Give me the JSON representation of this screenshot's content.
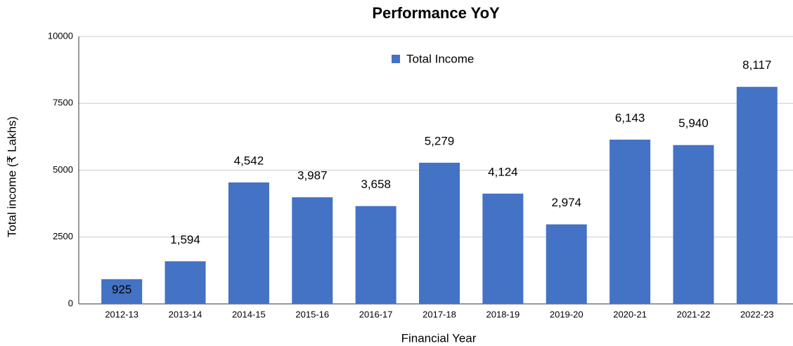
{
  "chart_data": {
    "type": "bar",
    "title": "Performance YoY",
    "x_label": "Financial Year",
    "y_label": "Total income (₹ Lakhs)",
    "categories": [
      "2012-13",
      "2013-14",
      "2014-15",
      "2015-16",
      "2016-17",
      "2017-18",
      "2018-19",
      "2019-20",
      "2020-21",
      "2021-22",
      "2022-23"
    ],
    "series": [
      {
        "name": "Total Income",
        "color": "#4472c4",
        "values": [
          925,
          1594,
          4542,
          3987,
          3658,
          5279,
          4124,
          2974,
          6143,
          5940,
          8117
        ],
        "value_labels": [
          "925",
          "1,594",
          "4,542",
          "3,987",
          "3,658",
          "5,279",
          "4,124",
          "2,974",
          "6,143",
          "5,940",
          "8,117"
        ]
      }
    ],
    "ylim": [
      0,
      10000
    ],
    "yticks": [
      0,
      2500,
      5000,
      7500,
      10000
    ],
    "grid": true,
    "legend": "top"
  }
}
